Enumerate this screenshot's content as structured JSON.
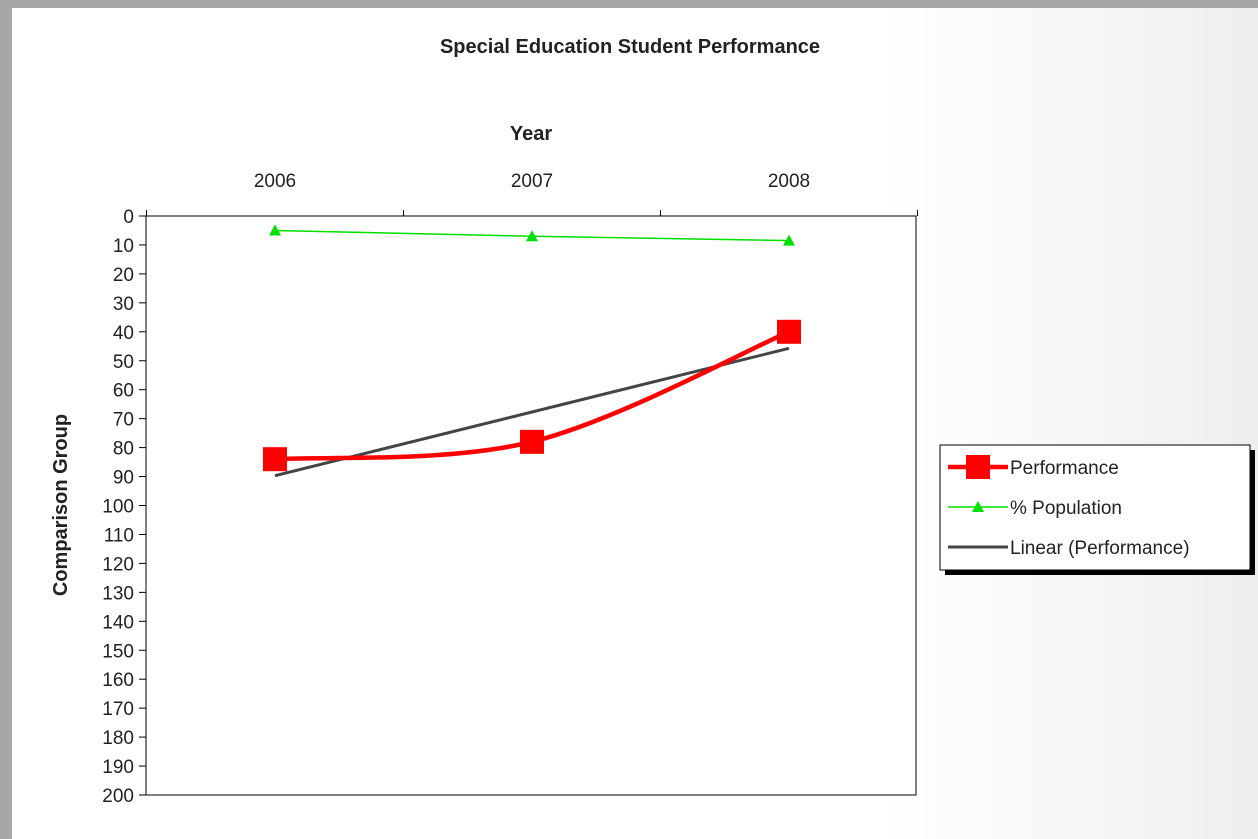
{
  "chart_data": {
    "type": "line",
    "title": "Special Education Student Performance",
    "xlabel": "Year",
    "ylabel": "Comparison Group",
    "x_axis_position": "top",
    "y_axis_reversed": true,
    "categories": [
      "2006",
      "2007",
      "2008"
    ],
    "ylim": [
      0,
      200
    ],
    "yticks": [
      "0",
      "10",
      "20",
      "30",
      "40",
      "50",
      "60",
      "70",
      "80",
      "90",
      "100",
      "110",
      "120",
      "130",
      "140",
      "150",
      "160",
      "170",
      "180",
      "190",
      "200"
    ],
    "grid": false,
    "legend_position": "right",
    "series": [
      {
        "name": "Performance",
        "values": [
          84,
          78,
          40
        ],
        "color": "#ff0000",
        "marker": "square",
        "smoothed": true
      },
      {
        "name": "% Population",
        "values": [
          5,
          7,
          8.5
        ],
        "color": "#00e000",
        "marker": "triangle"
      },
      {
        "name": "Linear (Performance)",
        "values": [
          89.7,
          67.7,
          45.7
        ],
        "color": "#444444",
        "marker": "none",
        "trendline": true
      }
    ]
  }
}
